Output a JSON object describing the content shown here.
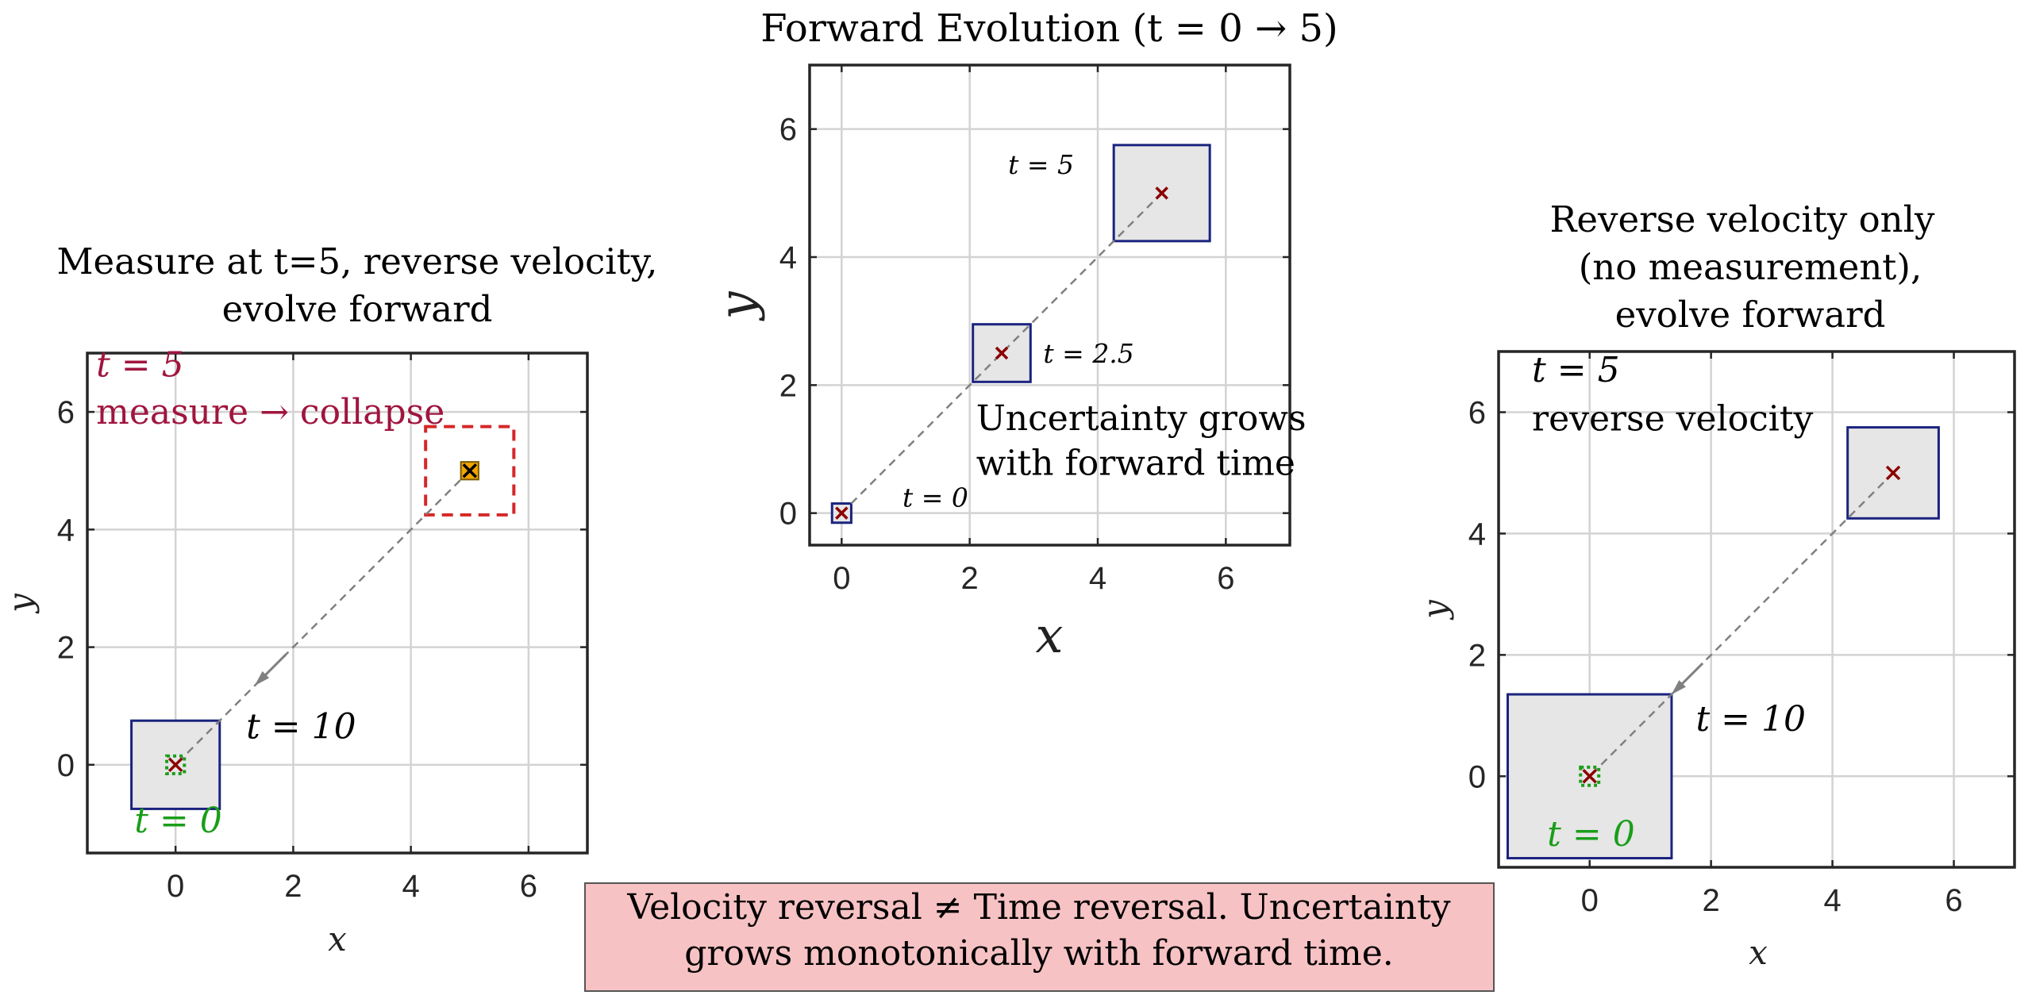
{
  "chart_data": [
    {
      "type": "scatter",
      "panel": "left",
      "title_lines": [
        "Measure at t=5, reverse velocity,",
        "evolve forward"
      ],
      "xlabel": "x",
      "ylabel": "y",
      "xlim": [
        -1.5,
        7
      ],
      "ylim": [
        -1.5,
        7
      ],
      "xticks": [
        0,
        2,
        4,
        6
      ],
      "yticks": [
        0,
        2,
        4,
        6
      ],
      "grid": true,
      "boxes": [
        {
          "label": "t=10 uncertainty",
          "x": [
            -0.75,
            0.75
          ],
          "y": [
            -0.75,
            0.75
          ],
          "style": "grey-fill-navy-edge"
        },
        {
          "label": "measurement box",
          "x": [
            4.25,
            5.75
          ],
          "y": [
            4.25,
            5.75
          ],
          "style": "red-dashed"
        },
        {
          "label": "collapsed state",
          "x": [
            4.85,
            5.15
          ],
          "y": [
            4.85,
            5.15
          ],
          "style": "orange-fill"
        },
        {
          "label": "t=0 initial",
          "x": [
            -0.15,
            0.15
          ],
          "y": [
            -0.15,
            0.15
          ],
          "style": "green-dotted"
        }
      ],
      "centers": [
        {
          "x": 5,
          "y": 5,
          "color": "#000000"
        },
        {
          "x": 0,
          "y": 0,
          "color": "#8b0000"
        }
      ],
      "path": {
        "from": [
          5,
          5
        ],
        "to": [
          0,
          0
        ],
        "arrow_at": [
          1.4,
          1.4
        ],
        "direction": "toward-origin"
      },
      "annotations": [
        {
          "text": "t = 5",
          "x": -1.35,
          "y": 6.6,
          "color": "#a0153e",
          "italic": true
        },
        {
          "text": "measure → collapse",
          "x": -1.35,
          "y": 5.8,
          "color": "#a0153e",
          "italic": false
        },
        {
          "text": "t = 10",
          "x": 1.2,
          "y": 0.45,
          "color": "#000000",
          "italic": true
        },
        {
          "text": "t = 0",
          "x": -0.7,
          "y": -1.15,
          "color": "#1a9e1a",
          "italic": true
        }
      ]
    },
    {
      "type": "scatter",
      "panel": "middle",
      "title": "Forward Evolution (t = 0 → 5)",
      "xlabel": "x",
      "ylabel": "y",
      "xlim": [
        -0.5,
        7
      ],
      "ylim": [
        -0.5,
        7
      ],
      "xticks": [
        0,
        2,
        4,
        6
      ],
      "yticks": [
        0,
        2,
        4,
        6
      ],
      "grid": true,
      "boxes": [
        {
          "label": "t=0",
          "x": [
            -0.15,
            0.15
          ],
          "y": [
            -0.15,
            0.15
          ],
          "style": "grey-fill-navy-edge"
        },
        {
          "label": "t=2.5",
          "x": [
            2.05,
            2.95
          ],
          "y": [
            2.05,
            2.95
          ],
          "style": "grey-fill-navy-edge"
        },
        {
          "label": "t=5",
          "x": [
            4.25,
            5.75
          ],
          "y": [
            4.25,
            5.75
          ],
          "style": "grey-fill-navy-edge"
        }
      ],
      "centers": [
        {
          "x": 0,
          "y": 0,
          "color": "#8b0000"
        },
        {
          "x": 2.5,
          "y": 2.5,
          "color": "#8b0000"
        },
        {
          "x": 5,
          "y": 5,
          "color": "#8b0000"
        }
      ],
      "path": {
        "from": [
          0,
          0
        ],
        "to": [
          5,
          5
        ]
      },
      "annotations": [
        {
          "text": "t = 0",
          "x": 0.95,
          "y": 0.1,
          "color": "#000000",
          "italic": true,
          "size": "small"
        },
        {
          "text": "t = 2.5",
          "x": 3.15,
          "y": 2.35,
          "color": "#000000",
          "italic": true,
          "size": "small"
        },
        {
          "text": "t = 5",
          "x": 2.6,
          "y": 5.3,
          "color": "#000000",
          "italic": true,
          "size": "small"
        },
        {
          "text": "Uncertainty grows",
          "x": 2.1,
          "y": 1.3,
          "color": "#000000",
          "italic": false
        },
        {
          "text": "with forward time",
          "x": 2.1,
          "y": 0.6,
          "color": "#000000",
          "italic": false
        }
      ]
    },
    {
      "type": "scatter",
      "panel": "right",
      "title_lines": [
        "Reverse velocity only",
        "(no measurement),",
        "evolve forward"
      ],
      "xlabel": "x",
      "ylabel": "y",
      "xlim": [
        -1.5,
        7
      ],
      "ylim": [
        -1.5,
        7
      ],
      "xticks": [
        0,
        2,
        4,
        6
      ],
      "yticks": [
        0,
        2,
        4,
        6
      ],
      "grid": true,
      "boxes": [
        {
          "label": "t=5",
          "x": [
            4.25,
            5.75
          ],
          "y": [
            4.25,
            5.75
          ],
          "style": "grey-fill-navy-edge"
        },
        {
          "label": "t=10 uncertainty",
          "x": [
            -1.35,
            1.35
          ],
          "y": [
            -1.35,
            1.35
          ],
          "style": "grey-fill-navy-edge"
        },
        {
          "label": "t=0 initial",
          "x": [
            -0.15,
            0.15
          ],
          "y": [
            -0.15,
            0.15
          ],
          "style": "green-dotted"
        }
      ],
      "centers": [
        {
          "x": 5,
          "y": 5,
          "color": "#8b0000"
        },
        {
          "x": 0,
          "y": 0,
          "color": "#8b0000"
        }
      ],
      "path": {
        "from": [
          5,
          5
        ],
        "to": [
          0,
          0
        ],
        "arrow_at": [
          1.4,
          1.4
        ],
        "direction": "toward-origin"
      },
      "annotations": [
        {
          "text": "t = 5",
          "x": -0.95,
          "y": 6.5,
          "color": "#000000",
          "italic": true
        },
        {
          "text": "reverse velocity",
          "x": -0.95,
          "y": 5.7,
          "color": "#000000",
          "italic": false
        },
        {
          "text": "t = 10",
          "x": 1.75,
          "y": 0.75,
          "color": "#000000",
          "italic": true
        },
        {
          "text": "t = 0",
          "x": -0.7,
          "y": -1.15,
          "color": "#1a9e1a",
          "italic": true
        }
      ]
    }
  ],
  "footer": {
    "line1": "Velocity reversal ≠ Time reversal. Uncertainty",
    "line2": "grows monotonically with forward time."
  },
  "colors": {
    "box_fill": "#e6e6e6",
    "box_edge": "#1a237e",
    "center_marker": "#8b0000",
    "measure_box": "#d62728",
    "collapsed_fill": "#f0a500",
    "initial_green": "#1a9e1a",
    "path": "#808080",
    "footer_fill": "#f7c2c4"
  }
}
